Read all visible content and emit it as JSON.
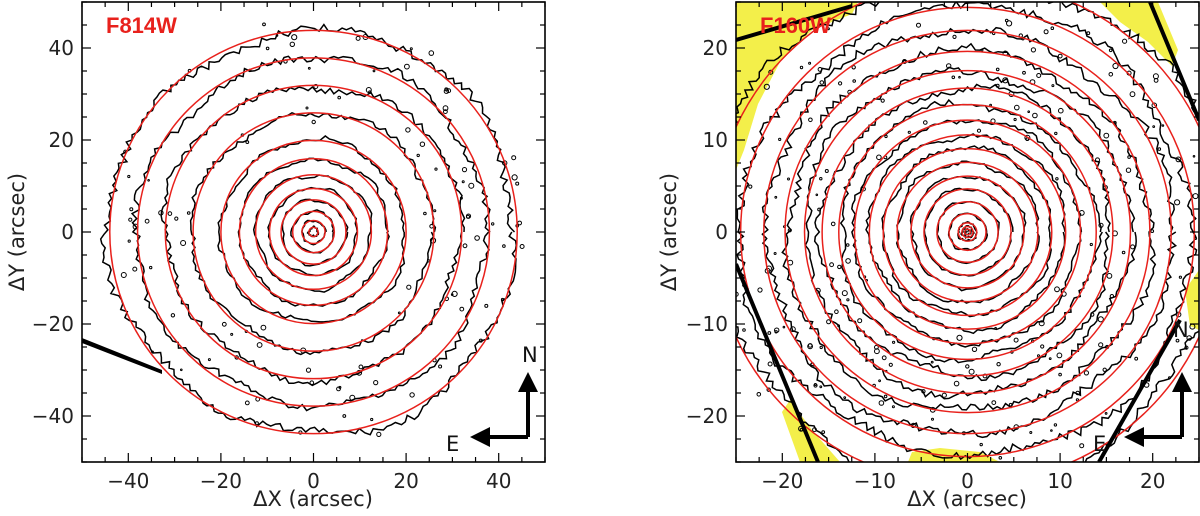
{
  "colors": {
    "ellipse": "#e8211c",
    "contour": "#000000",
    "label": "#e8211c",
    "mask": "#f3ef4a"
  },
  "chart_data": [
    {
      "type": "contour",
      "label": "F814W",
      "xlabel_prefix": "ΔX",
      "xlabel_unit": "(arcsec)",
      "ylabel_prefix": "ΔY",
      "ylabel_unit": "(arcsec)",
      "xlim": [
        -50,
        50
      ],
      "ylim": [
        -50,
        50
      ],
      "xticks": [
        -40,
        -20,
        0,
        20,
        40
      ],
      "yticks": [
        -40,
        -20,
        0,
        20,
        40
      ],
      "xtick_labels": [
        "−40",
        "−20",
        "0",
        "20",
        "40"
      ],
      "ytick_labels": [
        "−40",
        "−20",
        "0",
        "20",
        "40"
      ],
      "ellipse_semi_major": [
        1,
        2.5,
        4.5,
        7,
        9.5,
        12.5,
        16,
        20,
        26,
        32,
        38,
        44
      ],
      "ellipse_axis_ratio": 0.99,
      "compass": {
        "north": "N",
        "east": "E"
      }
    },
    {
      "type": "contour",
      "label": "F160W",
      "xlabel_prefix": "ΔX",
      "xlabel_unit": "(arcsec)",
      "ylabel_prefix": "ΔY",
      "ylabel_unit": "(arcsec)",
      "xlim": [
        -25,
        25
      ],
      "ylim": [
        -25,
        25
      ],
      "xticks": [
        -20,
        -10,
        0,
        10,
        20
      ],
      "yticks": [
        -20,
        -10,
        0,
        10,
        20
      ],
      "xtick_labels": [
        "−20",
        "−10",
        "0",
        "10",
        "20"
      ],
      "ytick_labels": [
        "−20",
        "−10",
        "0",
        "10",
        "20"
      ],
      "ellipse_semi_major": [
        0.3,
        0.6,
        1,
        2,
        3.3,
        4.7,
        6.1,
        7.6,
        9.1,
        10.6,
        12.2,
        13.9,
        15.7,
        17.6,
        19.7,
        22,
        24.5,
        27.5
      ],
      "ellipse_axis_ratio": 0.99,
      "compass": {
        "north": "N",
        "east": "E"
      }
    }
  ]
}
